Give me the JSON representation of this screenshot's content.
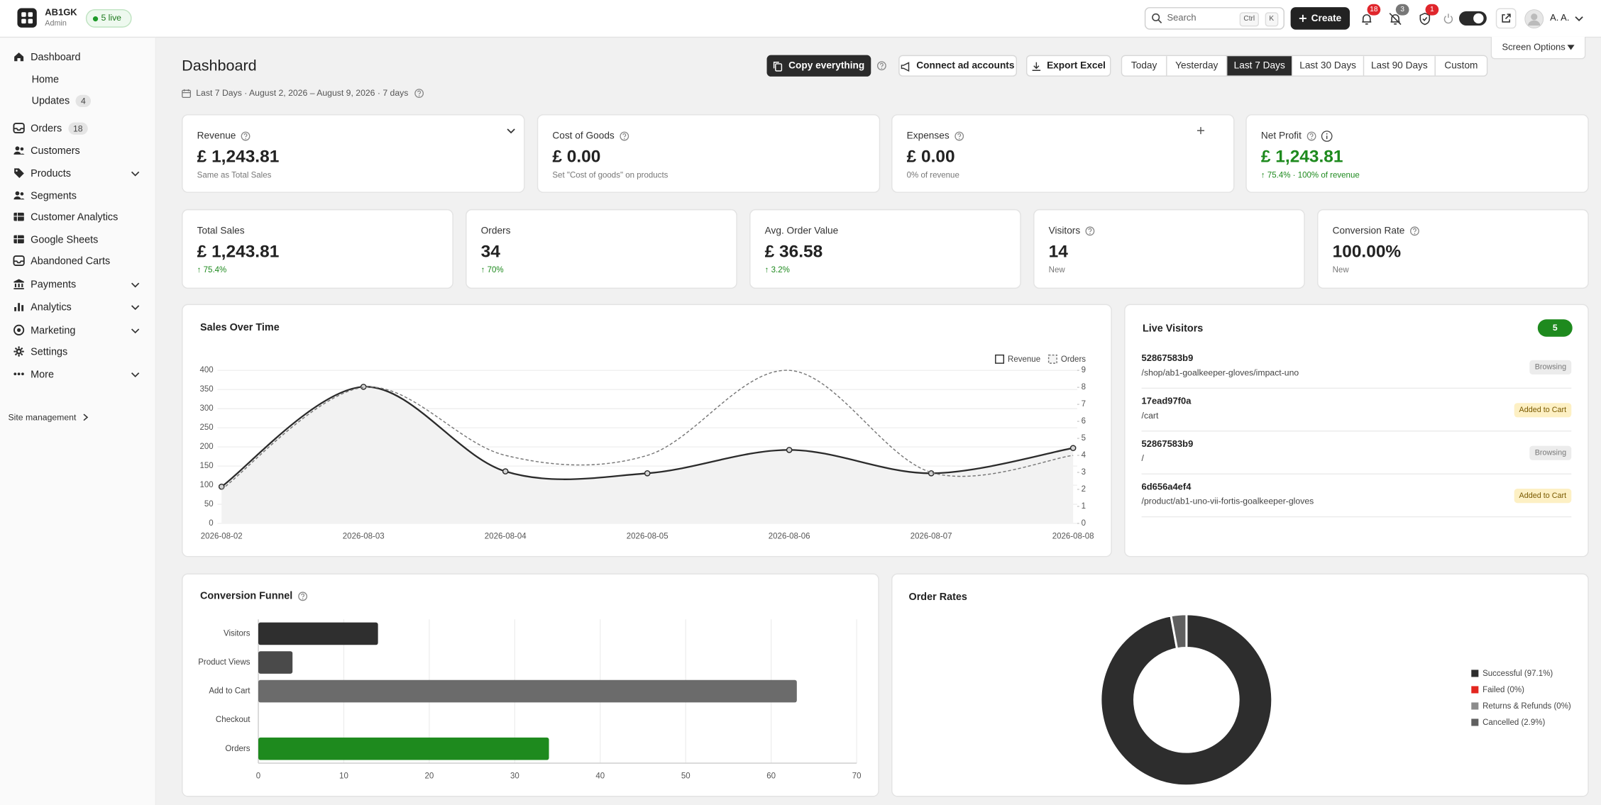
{
  "header": {
    "brand": "AB1GK",
    "role": "Admin",
    "live": "5 live",
    "search": "Search",
    "shortcut": [
      "Ctrl",
      "K"
    ],
    "create": "Create",
    "notifications": [
      {
        "count": 18,
        "color": "#e0262c"
      },
      {
        "count": 3,
        "color": "#777777"
      },
      {
        "count": 1,
        "color": "#e0262c"
      }
    ],
    "user": "A. A.",
    "screen_options": "Screen Options"
  },
  "sidebar": {
    "items": [
      {
        "label": "Dashboard"
      },
      {
        "label": "Home",
        "sub": true
      },
      {
        "label": "Updates",
        "sub": true,
        "count": 4
      },
      {
        "label": "Orders",
        "count": 18
      },
      {
        "label": "Customers"
      },
      {
        "label": "Products",
        "expandable": true
      },
      {
        "label": "Segments"
      },
      {
        "label": "Customer Analytics"
      },
      {
        "label": "Google Sheets"
      },
      {
        "label": "Abandoned Carts"
      },
      {
        "label": "Payments",
        "expandable": true
      },
      {
        "label": "Analytics",
        "expandable": true
      },
      {
        "label": "Marketing",
        "expandable": true
      },
      {
        "label": "Settings"
      },
      {
        "label": "More",
        "expandable": true
      }
    ],
    "footer": "Site management"
  },
  "toolbar": {
    "title": "Dashboard",
    "actions": [
      "Copy everything",
      "Connect ad accounts",
      "Export Excel"
    ],
    "ranges": [
      "Today",
      "Yesterday",
      "Last 7 Days",
      "Last 30 Days",
      "Last 90 Days",
      "Custom"
    ],
    "active_range": 2,
    "date_range": "Last 7 Days · August 2, 2026 – August 9, 2026 · 7 days"
  },
  "summary_cards": [
    {
      "title": "Revenue",
      "value": "£ 1,243.81",
      "note": "Same as Total Sales"
    },
    {
      "title": "Cost of Goods",
      "value": "£ 0.00",
      "note": "Set \"Cost of goods\" on products"
    },
    {
      "title": "Expenses",
      "value": "£ 0.00",
      "note": "0% of revenue"
    },
    {
      "title": "Net Profit",
      "value": "£ 1,243.81",
      "note": "↑ 75.4% · 100% of revenue",
      "value_color": "#1e8a1e",
      "note_color": "#1e8a1e"
    }
  ],
  "metric_cards": [
    {
      "title": "Total Sales",
      "value": "£ 1,243.81",
      "note": "↑ 75.4%",
      "note_color": "#1e8a1e"
    },
    {
      "title": "Orders",
      "value": "34",
      "note": "↑ 70%",
      "note_color": "#1e8a1e"
    },
    {
      "title": "Avg. Order Value",
      "value": "£ 36.58",
      "note": "↑ 3.2%",
      "note_color": "#1e8a1e"
    },
    {
      "title": "Visitors",
      "value": "14",
      "note": "New"
    },
    {
      "title": "Conversion Rate",
      "value": "100.00%",
      "note": "New"
    }
  ],
  "live_visitors": {
    "title": "Live Visitors",
    "count": 5,
    "visitors": [
      {
        "id": "52867583b9",
        "path": "/shop/ab1-goalkeeper-gloves/impact-uno",
        "status": "Browsing",
        "status_style": "neutral"
      },
      {
        "id": "17ead97f0a",
        "path": "/cart",
        "status": "Added to Cart",
        "status_style": "warning"
      },
      {
        "id": "52867583b9",
        "path": "/",
        "status": "Browsing",
        "status_style": "neutral"
      },
      {
        "id": "6d656a4ef4",
        "path": "/product/ab1-uno-vii-fortis-goalkeeper-gloves",
        "status": "Added to Cart",
        "status_style": "warning"
      }
    ]
  },
  "chart_data": [
    {
      "type": "line",
      "title": "Sales Over Time",
      "categories": [
        "2026-08-02",
        "2026-08-03",
        "2026-08-04",
        "2026-08-05",
        "2026-08-06",
        "2026-08-07",
        "2026-08-08"
      ],
      "series": [
        {
          "name": "Revenue",
          "color": "#2b2b2b",
          "fill": "#f2f2f2",
          "markers": true,
          "values": [
            96,
            357,
            136,
            131,
            192,
            131,
            197
          ]
        },
        {
          "name": "Orders",
          "color": "#777777",
          "dashed": true,
          "axis": "y2",
          "values": [
            2,
            8,
            4,
            4,
            9,
            3,
            4
          ]
        }
      ],
      "ylim": [
        0,
        400
      ],
      "yticks": [
        0,
        50,
        100,
        150,
        200,
        250,
        300,
        350,
        400
      ],
      "y2lim": [
        0,
        9
      ],
      "y2ticks": [
        0,
        1,
        2,
        3,
        4,
        5,
        6,
        7,
        8,
        9
      ],
      "grid": true,
      "legend": "top-right"
    },
    {
      "type": "bar",
      "orientation": "horizontal",
      "title": "Conversion Funnel",
      "categories": [
        "Visitors",
        "Product Views",
        "Add to Cart",
        "Checkout",
        "Orders"
      ],
      "values": [
        14,
        4,
        63,
        0,
        34
      ],
      "colors": [
        "#2f2f2f",
        "#4a4a4a",
        "#6b6b6b",
        "#8a8a8a",
        "#1e8a1e"
      ],
      "xlim": [
        0,
        70
      ],
      "xticks": [
        0,
        10,
        20,
        30,
        40,
        50,
        60,
        70
      ],
      "grid": true
    },
    {
      "type": "pie",
      "donut": true,
      "title": "Order Rates",
      "categories": [
        "Successful (97.1%)",
        "Failed (0%)",
        "Returns & Refunds (0%)",
        "Cancelled (2.9%)"
      ],
      "values": [
        97.1,
        0,
        0,
        2.9
      ],
      "colors": [
        "#2d2d2d",
        "#e3261f",
        "#8c8c8c",
        "#5f5f5f"
      ],
      "legend": "right"
    }
  ]
}
